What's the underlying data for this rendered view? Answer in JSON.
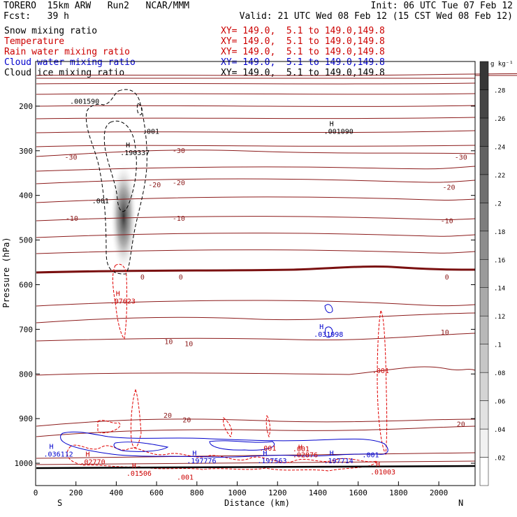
{
  "header": {
    "model": "TORERO  15km ARW   Run2   NCAR/MMM",
    "init": "Init: 06 UTC Tue 07 Feb 12",
    "fcst": "Fcst:   39 h",
    "valid": "Valid: 21 UTC Wed 08 Feb 12 (15 CST Wed 08 Feb 12)"
  },
  "fields": [
    {
      "name": "Snow mixing ratio",
      "xy": "",
      "color": "#000000"
    },
    {
      "name": "Temperature",
      "xy": "XY= 149.0,  5.1 to 149.0,149.8",
      "color": "#cc0000"
    },
    {
      "name": "Rain water mixing ratio",
      "xy": "XY= 149.0,  5.1 to 149.0,149.8",
      "color": "#cc0000"
    },
    {
      "name": "Cloud water mixing ratio",
      "xy": "XY= 149.0,  5.1 to 149.0,149.8",
      "color": "#0000cc"
    },
    {
      "name": "Cloud ice mixing ratio",
      "xy": "XY= 149.0,  5.1 to 149.0,149.8",
      "color": "#000000"
    }
  ],
  "xy_top": "XY= 149.0,  5.1 to 149.0,149.8",
  "colorbar": {
    "unit": "g kg⁻¹",
    "ticks": [
      ".02",
      ".04",
      ".06",
      ".08",
      ".1",
      ".12",
      ".14",
      ".16",
      ".18",
      ".2",
      ".22",
      ".24",
      ".26",
      ".28"
    ]
  },
  "chart_data": {
    "type": "contour-cross-section",
    "xlabel": "Distance (km)",
    "ylabel": "Pressure (hPa)",
    "xlim": [
      0,
      2180
    ],
    "ylim": [
      1050,
      100
    ],
    "x_ticks": [
      0,
      200,
      400,
      600,
      800,
      1000,
      1200,
      1400,
      1600,
      1800,
      2000
    ],
    "y_ticks": [
      200,
      300,
      400,
      500,
      600,
      700,
      800,
      900,
      1000
    ],
    "end_labels": {
      "left": "S",
      "right": "N"
    },
    "temperature_labels": [
      {
        "x": 175,
        "p": 320,
        "text": "-30"
      },
      {
        "x": 710,
        "p": 305,
        "text": "-30"
      },
      {
        "x": 2110,
        "p": 320,
        "text": "-30"
      },
      {
        "x": 590,
        "p": 382,
        "text": "-20"
      },
      {
        "x": 710,
        "p": 377,
        "text": "-20"
      },
      {
        "x": 2050,
        "p": 387,
        "text": "-20"
      },
      {
        "x": 180,
        "p": 457,
        "text": "-10"
      },
      {
        "x": 710,
        "p": 457,
        "text": "-10"
      },
      {
        "x": 2040,
        "p": 462,
        "text": "-10"
      },
      {
        "x": 530,
        "p": 588,
        "text": "0"
      },
      {
        "x": 720,
        "p": 588,
        "text": "0"
      },
      {
        "x": 2040,
        "p": 588,
        "text": "0"
      },
      {
        "x": 660,
        "p": 733,
        "text": "10"
      },
      {
        "x": 760,
        "p": 738,
        "text": "10"
      },
      {
        "x": 2030,
        "p": 712,
        "text": "10"
      },
      {
        "x": 655,
        "p": 898,
        "text": "20"
      },
      {
        "x": 750,
        "p": 908,
        "text": "20"
      },
      {
        "x": 2110,
        "p": 918,
        "text": "20"
      }
    ],
    "extrema": [
      {
        "x": 170,
        "p": 195,
        "text": ".001590",
        "color": "#000000",
        "h": false
      },
      {
        "x": 530,
        "p": 262,
        "text": ".001",
        "color": "#000000",
        "h": false
      },
      {
        "x": 420,
        "p": 310,
        "text": ".190337",
        "color": "#000000",
        "h": true
      },
      {
        "x": 280,
        "p": 418,
        "text": ".001",
        "color": "#000000",
        "h": false
      },
      {
        "x": 1430,
        "p": 262,
        "text": ".001090",
        "color": "#000000",
        "h": true
      },
      {
        "x": 370,
        "p": 642,
        "text": ".07623",
        "color": "#cc0000",
        "h": true
      },
      {
        "x": 1380,
        "p": 717,
        "text": ".031998",
        "color": "#0000cc",
        "h": true
      },
      {
        "x": 1670,
        "p": 798,
        "text": ".001",
        "color": "#cc0000",
        "h": false
      },
      {
        "x": 40,
        "p": 985,
        "text": ".036112",
        "color": "#0000cc",
        "h": true
      },
      {
        "x": 220,
        "p": 1002,
        "text": ".02770",
        "color": "#cc0000",
        "h": true
      },
      {
        "x": 450,
        "p": 1028,
        "text": ".01506",
        "color": "#cc0000",
        "h": true
      },
      {
        "x": 700,
        "p": 1037,
        "text": ".001",
        "color": "#cc0000",
        "h": false
      },
      {
        "x": 750,
        "p": 1000,
        "text": ".197776",
        "color": "#0000cc",
        "h": true
      },
      {
        "x": 1100,
        "p": 1000,
        "text": ".197563",
        "color": "#0000cc",
        "h": true
      },
      {
        "x": 1110,
        "p": 972,
        "text": ".001",
        "color": "#cc0000",
        "h": false
      },
      {
        "x": 1275,
        "p": 973,
        "text": ".001",
        "color": "#cc0000",
        "h": false
      },
      {
        "x": 1275,
        "p": 987,
        "text": ".02876",
        "color": "#cc0000",
        "h": true
      },
      {
        "x": 1430,
        "p": 1000,
        "text": ".197714",
        "color": "#0000cc",
        "h": true
      },
      {
        "x": 1620,
        "p": 987,
        "text": ".001",
        "color": "#0000cc",
        "h": false
      },
      {
        "x": 1660,
        "p": 1025,
        "text": ".01003",
        "color": "#cc0000",
        "h": true
      }
    ]
  }
}
